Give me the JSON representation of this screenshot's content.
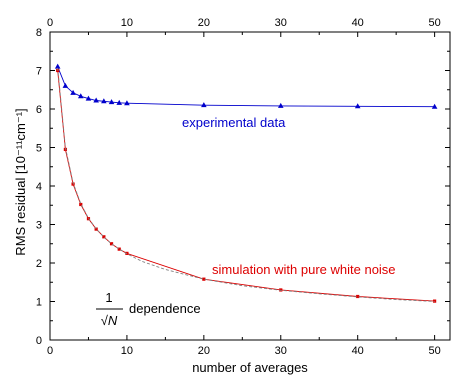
{
  "chart_data": {
    "type": "line",
    "xlabel": "number of averages",
    "ylabel": "RMS residual [10⁻¹¹cm⁻¹]",
    "xlim": [
      0,
      52
    ],
    "ylim": [
      0,
      8
    ],
    "xticks": [
      0,
      10,
      20,
      30,
      40,
      50
    ],
    "yticks": [
      0,
      1,
      2,
      3,
      4,
      5,
      6,
      7,
      8
    ],
    "top_axis_ticks": [
      0,
      10,
      20,
      30,
      40,
      50
    ],
    "right_axis_ticks": [
      0,
      1,
      2,
      3,
      4,
      5,
      6,
      7,
      8
    ],
    "grid": false,
    "legend": "none",
    "series": [
      {
        "name": "experimental data",
        "color": "#0000cc",
        "marker": "triangle",
        "x": [
          1,
          2,
          3,
          4,
          5,
          6,
          7,
          8,
          9,
          10,
          20,
          30,
          40,
          50
        ],
        "y": [
          7.1,
          6.6,
          6.42,
          6.33,
          6.27,
          6.22,
          6.2,
          6.18,
          6.16,
          6.15,
          6.1,
          6.08,
          6.07,
          6.06
        ]
      },
      {
        "name": "simulation with pure white noise",
        "color": "#dd0000",
        "marker": "square",
        "x": [
          1,
          2,
          3,
          4,
          5,
          6,
          7,
          8,
          9,
          10,
          20,
          30,
          40,
          50
        ],
        "y": [
          7.0,
          4.95,
          4.05,
          3.52,
          3.15,
          2.88,
          2.68,
          2.5,
          2.36,
          2.25,
          1.58,
          1.3,
          1.13,
          1.01
        ]
      },
      {
        "name": "1/√N dependence",
        "color": "#808080",
        "style": "dashed",
        "x": [
          1,
          2,
          3,
          4,
          5,
          6,
          7,
          8,
          9,
          10,
          12,
          15,
          20,
          25,
          30,
          35,
          40,
          45,
          50
        ],
        "y": [
          7.07,
          5.0,
          4.08,
          3.54,
          3.16,
          2.89,
          2.67,
          2.5,
          2.36,
          2.24,
          2.04,
          1.83,
          1.58,
          1.41,
          1.29,
          1.2,
          1.12,
          1.05,
          1.0
        ]
      }
    ],
    "annotations": {
      "experimental": "experimental data",
      "simulation": "simulation with pure white noise",
      "formula_numerator": "1",
      "formula_denominator": "√N",
      "formula_suffix": "dependence"
    }
  }
}
